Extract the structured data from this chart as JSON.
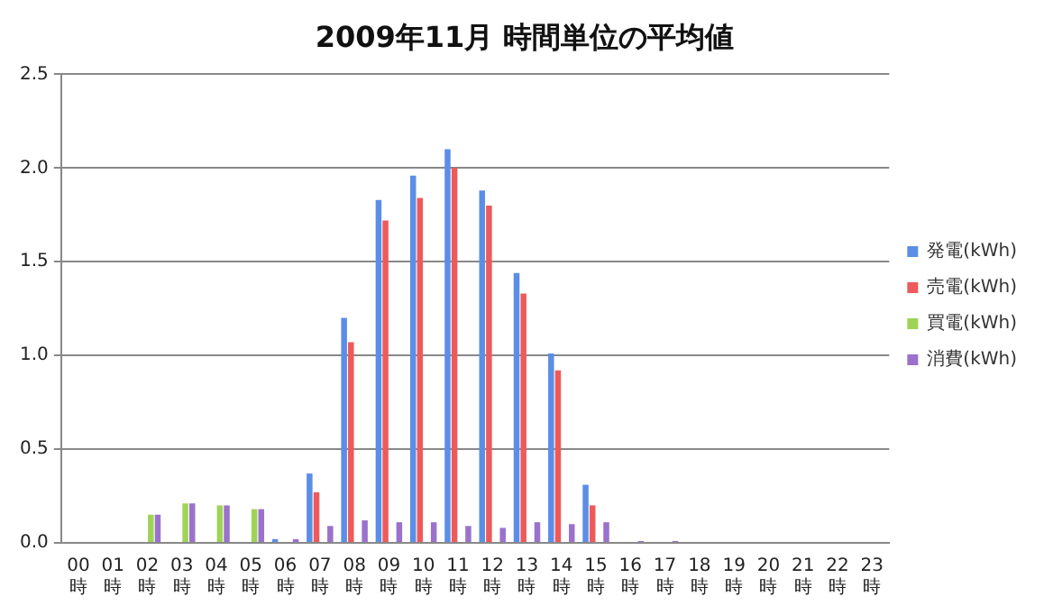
{
  "chart_data": {
    "type": "bar",
    "title": "2009年11月 時間単位の平均値",
    "categories": [
      "00時",
      "01時",
      "02時",
      "03時",
      "04時",
      "05時",
      "06時",
      "07時",
      "08時",
      "09時",
      "10時",
      "11時",
      "12時",
      "13時",
      "14時",
      "15時",
      "16時",
      "17時",
      "18時",
      "19時",
      "20時",
      "21時",
      "22時",
      "23時"
    ],
    "series": [
      {
        "name": "発電(kWh)",
        "color": "#5b8ee6",
        "values": [
          0,
          0,
          0,
          0,
          0,
          0,
          0.02,
          0.37,
          1.2,
          1.83,
          1.96,
          2.1,
          1.88,
          1.44,
          1.01,
          0.31,
          0,
          0,
          0,
          0,
          0,
          0,
          0,
          0
        ]
      },
      {
        "name": "売電(kWh)",
        "color": "#ee5a5a",
        "values": [
          0,
          0,
          0,
          0,
          0,
          0,
          0,
          0.27,
          1.07,
          1.72,
          1.84,
          2.0,
          1.8,
          1.33,
          0.92,
          0.2,
          0,
          0,
          0,
          0,
          0,
          0,
          0,
          0
        ]
      },
      {
        "name": "買電(kWh)",
        "color": "#9fd356",
        "values": [
          0,
          0,
          0.15,
          0.21,
          0.2,
          0.18,
          0,
          0,
          0,
          0,
          0,
          0,
          0,
          0,
          0,
          0,
          0,
          0,
          0,
          0,
          0,
          0,
          0,
          0
        ]
      },
      {
        "name": "消費(kWh)",
        "color": "#9a72cc",
        "values": [
          null,
          null,
          0.15,
          0.21,
          0.2,
          0.18,
          0.02,
          0.09,
          0.12,
          0.11,
          0.11,
          0.09,
          0.08,
          0.11,
          0.1,
          0.11,
          0.01,
          0.01,
          null,
          0,
          0,
          0,
          0,
          0
        ]
      }
    ],
    "ylim": [
      0,
      2.5
    ],
    "yticks": [
      {
        "value": 0,
        "label": "0.0"
      },
      0.5,
      {
        "value": 1,
        "label": "1.0"
      },
      1.5,
      {
        "value": 2,
        "label": "2.0"
      },
      2.5
    ],
    "grid": "y",
    "legend": "right"
  }
}
